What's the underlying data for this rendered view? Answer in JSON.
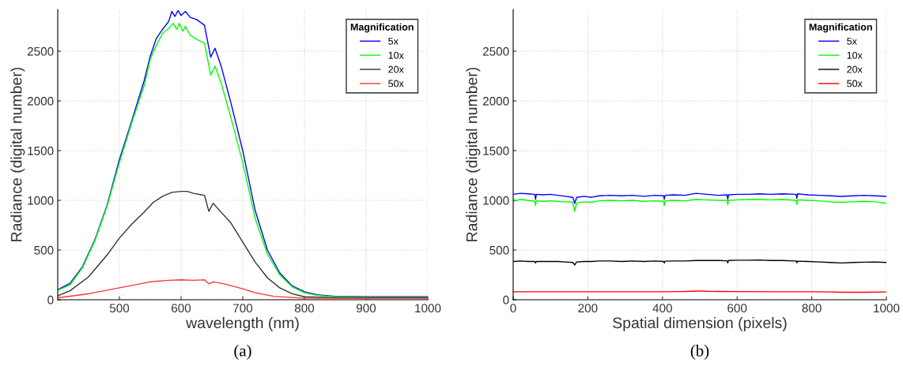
{
  "chart_data": [
    {
      "type": "line",
      "xlabel": "wavelength (nm)",
      "ylabel": "Radiance (digital number)",
      "legend_title": "Magnification",
      "legend": "top right",
      "grid": true,
      "xlim": [
        400,
        1000
      ],
      "xticks": [
        500,
        600,
        700,
        800,
        900,
        1000
      ],
      "ylim": [
        0,
        2920
      ],
      "yticks": [
        0,
        500,
        1000,
        1500,
        2000,
        2500
      ],
      "annotations": [
        "(a)"
      ],
      "series": [
        {
          "name": "5x",
          "color": "#0000ff",
          "x": [
            400,
            420,
            440,
            460,
            480,
            500,
            520,
            540,
            550,
            560,
            570,
            580,
            585,
            590,
            595,
            600,
            607,
            615,
            625,
            638,
            648,
            655,
            665,
            680,
            700,
            720,
            740,
            760,
            780,
            800,
            820,
            850,
            900,
            1000
          ],
          "values": [
            100,
            165,
            330,
            600,
            950,
            1410,
            1800,
            2200,
            2450,
            2630,
            2720,
            2800,
            2900,
            2850,
            2910,
            2860,
            2900,
            2840,
            2820,
            2760,
            2440,
            2530,
            2350,
            2000,
            1500,
            900,
            500,
            270,
            140,
            80,
            50,
            35,
            30,
            30
          ]
        },
        {
          "name": "10x",
          "color": "#00ff00",
          "x": [
            400,
            420,
            440,
            460,
            480,
            500,
            520,
            540,
            550,
            560,
            570,
            580,
            587,
            593,
            597,
            603,
            607,
            615,
            625,
            638,
            648,
            655,
            665,
            680,
            700,
            720,
            740,
            760,
            780,
            800,
            820,
            850,
            900,
            1000
          ],
          "values": [
            95,
            150,
            320,
            590,
            940,
            1380,
            1780,
            2150,
            2420,
            2560,
            2680,
            2730,
            2780,
            2720,
            2780,
            2700,
            2750,
            2660,
            2620,
            2580,
            2260,
            2350,
            2180,
            1850,
            1380,
            820,
            460,
            250,
            130,
            70,
            45,
            30,
            25,
            25
          ]
        },
        {
          "name": "20x",
          "color": "#333333",
          "x": [
            400,
            420,
            450,
            480,
            500,
            520,
            540,
            555,
            570,
            585,
            600,
            610,
            620,
            638,
            645,
            652,
            665,
            680,
            700,
            720,
            740,
            760,
            780,
            800,
            850,
            1000
          ],
          "values": [
            40,
            90,
            230,
            450,
            620,
            760,
            880,
            980,
            1040,
            1080,
            1090,
            1090,
            1070,
            1050,
            890,
            970,
            880,
            780,
            580,
            380,
            220,
            120,
            60,
            30,
            20,
            20
          ]
        },
        {
          "name": "50x",
          "color": "#ff3333",
          "x": [
            400,
            450,
            500,
            550,
            580,
            600,
            620,
            638,
            645,
            652,
            670,
            700,
            720,
            750,
            800,
            1000
          ],
          "values": [
            20,
            60,
            120,
            180,
            195,
            200,
            195,
            200,
            160,
            180,
            160,
            110,
            70,
            35,
            15,
            15
          ]
        }
      ]
    },
    {
      "type": "line",
      "xlabel": "Spatial dimension (pixels)",
      "ylabel": "Radiance (digital number)",
      "legend_title": "Magnification",
      "legend": "top right",
      "grid": true,
      "xlim": [
        0,
        1000
      ],
      "xticks": [
        0,
        200,
        400,
        600,
        800,
        1000
      ],
      "ylim": [
        0,
        2920
      ],
      "yticks": [
        0,
        500,
        1000,
        1500,
        2000,
        2500
      ],
      "annotations": [
        "(b)"
      ],
      "series": [
        {
          "name": "5x",
          "color": "#0000ff",
          "x": [
            0,
            20,
            40,
            58,
            60,
            62,
            80,
            100,
            120,
            140,
            160,
            165,
            170,
            190,
            210,
            230,
            260,
            290,
            320,
            350,
            380,
            403,
            405,
            407,
            430,
            460,
            490,
            520,
            550,
            573,
            575,
            577,
            600,
            630,
            660,
            690,
            720,
            758,
            760,
            762,
            790,
            820,
            850,
            880,
            910,
            940,
            970,
            1000
          ],
          "values": [
            1060,
            1070,
            1065,
            1060,
            1010,
            1060,
            1055,
            1060,
            1050,
            1040,
            1030,
            970,
            1030,
            1040,
            1030,
            1045,
            1050,
            1045,
            1050,
            1040,
            1050,
            1045,
            1010,
            1050,
            1055,
            1050,
            1070,
            1060,
            1050,
            1055,
            1010,
            1055,
            1060,
            1060,
            1065,
            1060,
            1065,
            1060,
            1020,
            1065,
            1055,
            1050,
            1045,
            1040,
            1045,
            1050,
            1045,
            1040
          ]
        },
        {
          "name": "10x",
          "color": "#00ff00",
          "x": [
            0,
            20,
            40,
            58,
            60,
            62,
            80,
            100,
            120,
            140,
            160,
            165,
            170,
            190,
            210,
            230,
            260,
            290,
            320,
            350,
            380,
            403,
            405,
            407,
            430,
            460,
            490,
            520,
            550,
            573,
            575,
            577,
            600,
            630,
            660,
            690,
            720,
            758,
            760,
            762,
            790,
            820,
            850,
            880,
            910,
            940,
            970,
            1000
          ],
          "values": [
            990,
            1010,
            1000,
            990,
            950,
            995,
            990,
            995,
            990,
            985,
            980,
            890,
            975,
            985,
            980,
            995,
            1000,
            995,
            1000,
            990,
            995,
            990,
            950,
            995,
            1000,
            995,
            1010,
            1005,
            1000,
            1000,
            955,
            1000,
            1005,
            1010,
            1010,
            1005,
            1010,
            1000,
            960,
            1005,
            1000,
            995,
            985,
            980,
            985,
            990,
            985,
            970
          ]
        },
        {
          "name": "20x",
          "color": "#000000",
          "x": [
            0,
            20,
            40,
            58,
            60,
            62,
            80,
            100,
            120,
            140,
            160,
            165,
            170,
            190,
            210,
            230,
            260,
            290,
            320,
            350,
            380,
            403,
            405,
            407,
            430,
            460,
            490,
            520,
            550,
            573,
            575,
            577,
            600,
            630,
            660,
            690,
            720,
            758,
            760,
            762,
            790,
            820,
            850,
            880,
            910,
            940,
            970,
            1000
          ],
          "values": [
            385,
            390,
            385,
            385,
            370,
            385,
            385,
            385,
            385,
            380,
            375,
            350,
            380,
            385,
            385,
            390,
            390,
            385,
            390,
            385,
            390,
            385,
            370,
            388,
            390,
            390,
            395,
            395,
            395,
            392,
            370,
            395,
            398,
            398,
            400,
            395,
            395,
            390,
            372,
            388,
            385,
            380,
            375,
            370,
            375,
            378,
            380,
            375
          ]
        },
        {
          "name": "50x",
          "color": "#ff0000",
          "x": [
            0,
            100,
            200,
            300,
            400,
            450,
            480,
            500,
            520,
            550,
            600,
            700,
            800,
            850,
            880,
            900,
            950,
            1000
          ],
          "values": [
            80,
            80,
            80,
            80,
            80,
            82,
            85,
            88,
            85,
            83,
            82,
            80,
            80,
            78,
            75,
            75,
            75,
            78
          ]
        }
      ]
    }
  ]
}
